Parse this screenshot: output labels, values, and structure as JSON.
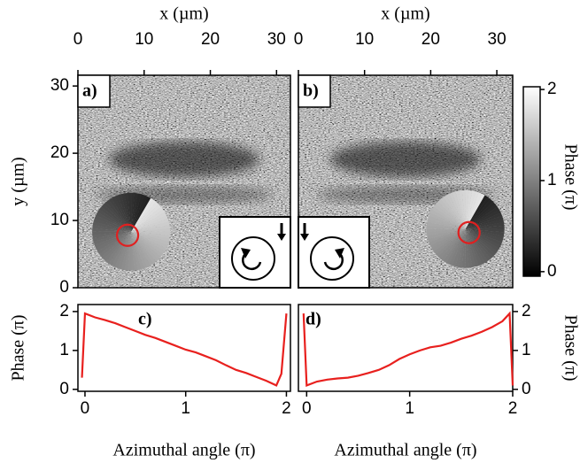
{
  "chart_data": [
    {
      "type": "image",
      "label": "a)",
      "xlabel": "x (µm)",
      "ylabel": "y (µm)",
      "xlim": [
        0,
        32.1
      ],
      "ylim": [
        0,
        31.6
      ],
      "xticks": [
        0,
        10,
        20,
        30
      ],
      "yticks": [
        0,
        10,
        20,
        30
      ],
      "circle": {
        "x": 7.5,
        "y": 7.8
      },
      "circle_color": "#e02020"
    },
    {
      "type": "image",
      "label": "b)",
      "xlabel": "x (µm)",
      "xlim": [
        0,
        32.4
      ],
      "ylim": [
        0,
        31.6
      ],
      "xticks": [
        0,
        10,
        20,
        30
      ],
      "circle": {
        "x": 25.8,
        "y": 8.2
      },
      "circle_color": "#e02020",
      "colorbar": {
        "label": "Phase (π)",
        "lim": [
          -0.05,
          2.03
        ],
        "ticks": [
          0,
          1,
          2
        ]
      }
    },
    {
      "type": "line",
      "label": "c)",
      "xlabel": "Azimuthal angle (π)",
      "ylabel": "Phase (π)",
      "xlim": [
        -0.07,
        2.04
      ],
      "ylim": [
        -0.05,
        2.18
      ],
      "xticks": [
        0,
        1,
        2
      ],
      "yticks": [
        0,
        1,
        2
      ],
      "x": [
        -0.03,
        0,
        0.1,
        0.2,
        0.3,
        0.4,
        0.5,
        0.6,
        0.7,
        0.8,
        0.9,
        1.0,
        1.1,
        1.2,
        1.3,
        1.4,
        1.5,
        1.6,
        1.7,
        1.8,
        1.9,
        1.95,
        2.0
      ],
      "values": [
        0.3,
        1.95,
        1.85,
        1.78,
        1.7,
        1.6,
        1.5,
        1.4,
        1.32,
        1.22,
        1.12,
        1.02,
        0.95,
        0.85,
        0.75,
        0.62,
        0.5,
        0.42,
        0.32,
        0.22,
        0.1,
        0.4,
        1.95
      ],
      "color": "#e8201e"
    },
    {
      "type": "line",
      "label": "d)",
      "xlabel": "Azimuthal angle (π)",
      "ylabel": "Phase (π)",
      "yaxis": "right",
      "xlim": [
        -0.08,
        2.0
      ],
      "ylim": [
        -0.05,
        2.18
      ],
      "xticks": [
        0,
        1,
        2
      ],
      "yticks": [
        0,
        1,
        2
      ],
      "x": [
        -0.03,
        0,
        0.1,
        0.2,
        0.3,
        0.4,
        0.5,
        0.6,
        0.7,
        0.8,
        0.9,
        1.0,
        1.1,
        1.2,
        1.3,
        1.4,
        1.5,
        1.6,
        1.7,
        1.8,
        1.9,
        1.97,
        2.0
      ],
      "values": [
        1.95,
        0.1,
        0.2,
        0.25,
        0.28,
        0.3,
        0.35,
        0.42,
        0.5,
        0.62,
        0.78,
        0.9,
        1.0,
        1.08,
        1.12,
        1.2,
        1.3,
        1.38,
        1.48,
        1.6,
        1.75,
        1.95,
        0.1
      ],
      "color": "#e8201e"
    }
  ]
}
